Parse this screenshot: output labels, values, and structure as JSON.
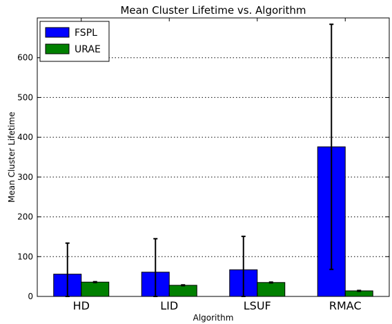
{
  "chart_data": {
    "type": "bar",
    "title": "Mean Cluster Lifetime vs. Algorithm",
    "xlabel": "Algorithm",
    "ylabel": "Mean Cluster Lifetime",
    "categories": [
      "HD",
      "LID",
      "LSUF",
      "RMAC"
    ],
    "ylim": [
      0,
      700
    ],
    "yticks": [
      0,
      100,
      200,
      300,
      400,
      500,
      600
    ],
    "grid": true,
    "legend_position": "top-left",
    "series": [
      {
        "name": "FSPL",
        "color": "#0000ff",
        "values": [
          56,
          61,
          67,
          376
        ],
        "errors": [
          78,
          84,
          84,
          308
        ]
      },
      {
        "name": "URAE",
        "color": "#008000",
        "values": [
          36,
          28,
          35,
          14
        ],
        "errors": [
          1,
          1,
          1,
          1
        ]
      }
    ]
  }
}
